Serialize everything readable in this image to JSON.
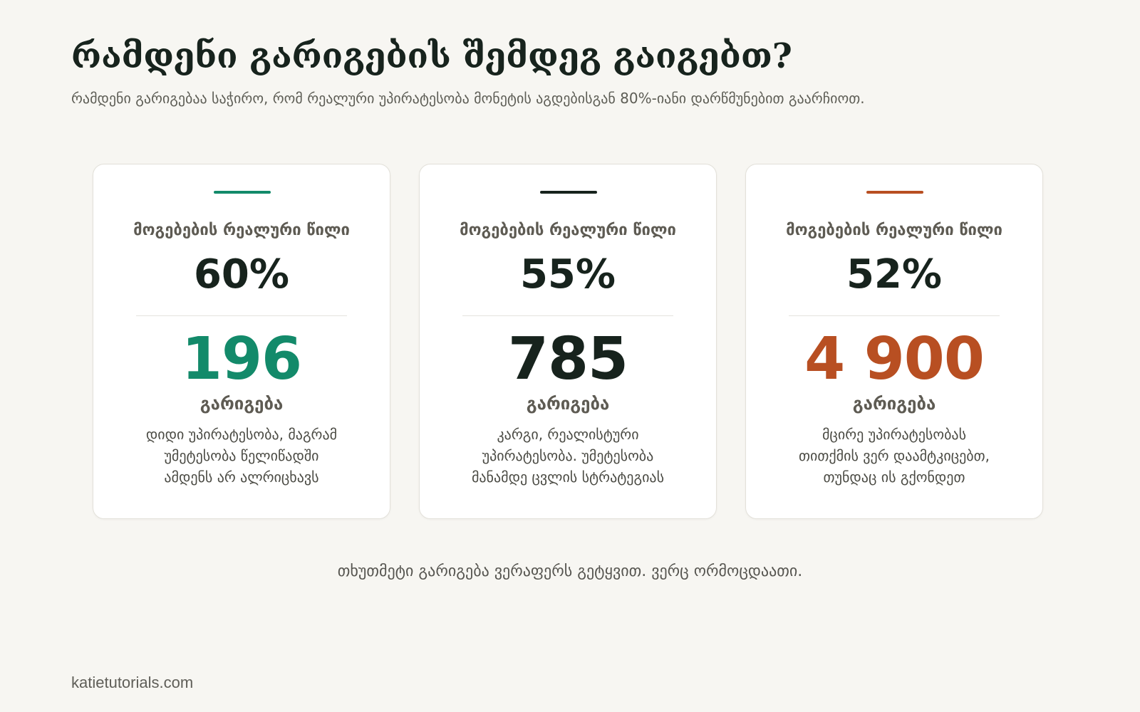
{
  "header": {
    "title": "რამდენი გარიგების შემდეგ გაიგებთ?",
    "subtitle": "რამდენი გარიგებაა საჭირო, რომ რეალური უპირატესობა მონეტის აგდებისგან 80%-იანი დარწმუნებით გაარჩიოთ."
  },
  "colors": {
    "background": "#f7f6f2",
    "card1_accent": "#138a6a",
    "card2_accent": "#17231d",
    "card3_accent": "#b84f22"
  },
  "cards": [
    {
      "label": "მოგებების რეალური წილი",
      "value": "60%",
      "count": "196",
      "unit": "გარიგება",
      "desc_lines": [
        "დიდი უპირატესობა, მაგრამ",
        "უმეტესობა წელიწადში",
        "ამდენს არ ალრიცხავს"
      ]
    },
    {
      "label": "მოგებების რეალური წილი",
      "value": "55%",
      "count": "785",
      "unit": "გარიგება",
      "desc_lines": [
        "კარგი, რეალისტური",
        "უპირატესობა. უმეტესობა",
        "მანამდე ცვლის სტრატეგიას"
      ]
    },
    {
      "label": "მოგებების რეალური წილი",
      "value": "52%",
      "count": "4 900",
      "unit": "გარიგება",
      "desc_lines": [
        "მცირე უპირატესობას",
        "თითქმის ვერ დაამტკიცებთ,",
        "თუნდაც ის გქონდეთ"
      ]
    }
  ],
  "tagline": "თხუთმეტი გარიგება ვერაფერს გეტყვით. ვერც ორმოცდაათი.",
  "footer": "katietutorials.com"
}
